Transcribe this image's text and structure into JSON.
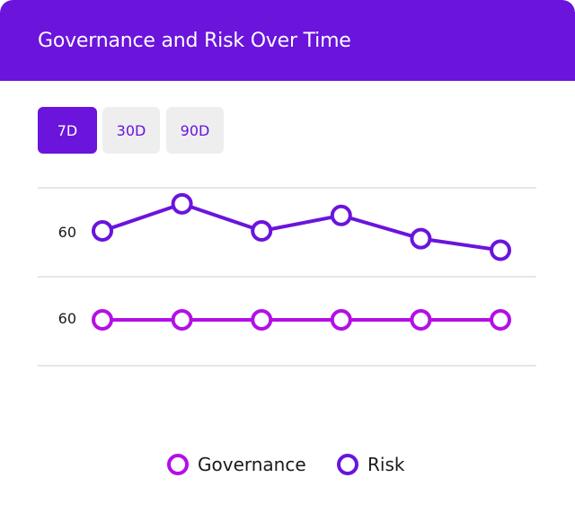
{
  "header": {
    "title": "Governance and Risk Over Time"
  },
  "range_tabs": [
    {
      "label": "7D",
      "active": true
    },
    {
      "label": "30D",
      "active": false
    },
    {
      "label": "90D",
      "active": false
    }
  ],
  "colors": {
    "brand": "#6a14dc",
    "governance": "#b40fe6",
    "risk": "#6a14dc",
    "gridline": "#cfcfcf",
    "inactive_tab_bg": "#eeeeee"
  },
  "chart_data": {
    "type": "line",
    "title": "Governance and Risk Over Time",
    "x": [
      1,
      2,
      3,
      4,
      5,
      6
    ],
    "series": [
      {
        "name": "Risk",
        "values": [
          60,
          67,
          60,
          64,
          58,
          55
        ],
        "tick_label": "60"
      },
      {
        "name": "Governance",
        "values": [
          60,
          60,
          60,
          60,
          60,
          60
        ],
        "tick_label": "60"
      }
    ],
    "grid": true,
    "legend": "bottom-center"
  },
  "legend": [
    {
      "label": "Governance",
      "color_key": "governance"
    },
    {
      "label": "Risk",
      "color_key": "risk"
    }
  ]
}
